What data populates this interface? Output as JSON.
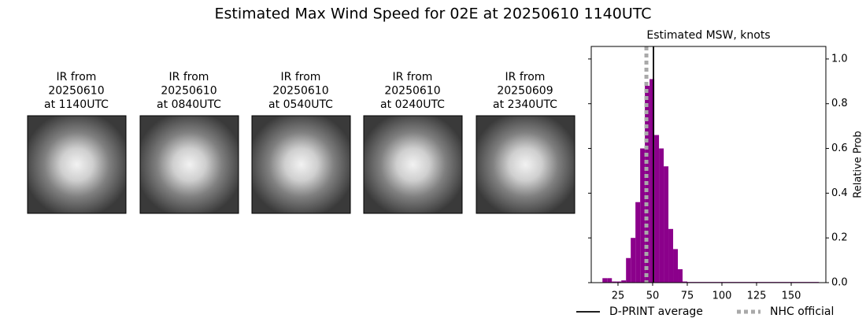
{
  "title": "Estimated Max Wind Speed for 02E at 20250610 1140UTC",
  "panels": [
    {
      "lines": [
        "IR from",
        "20250610",
        "at 1140UTC"
      ]
    },
    {
      "lines": [
        "IR from",
        "20250610",
        "at 0840UTC"
      ]
    },
    {
      "lines": [
        "IR from",
        "20250610",
        "at 0540UTC"
      ]
    },
    {
      "lines": [
        "IR from",
        "20250610",
        "at 0240UTC"
      ]
    },
    {
      "lines": [
        "IR from",
        "20250609",
        "at 2340UTC"
      ]
    }
  ],
  "chart_data": {
    "type": "histogram",
    "title": "Estimated MSW, knots",
    "y_label": "Relative Prob",
    "bins": [
      13.8,
      17.2,
      20.6,
      24,
      27.4,
      30.8,
      34.2,
      37.6,
      41,
      44.4,
      47.8,
      51.2,
      54.6,
      58,
      61.4,
      64.8,
      68.2,
      71.6,
      75,
      170
    ],
    "values": [
      0.02,
      0.02,
      0.005,
      0.005,
      0.01,
      0.11,
      0.2,
      0.36,
      0.6,
      0.88,
      0.91,
      0.66,
      0.6,
      0.52,
      0.24,
      0.15,
      0.06,
      0.005,
      0.003
    ],
    "color": "#8b008b",
    "xlim": [
      5.7,
      175
    ],
    "xticks": [
      25,
      50,
      75,
      100,
      125,
      150
    ],
    "ylim": [
      0,
      1.056
    ],
    "yticks": [
      {
        "value": 0,
        "label": "0.0"
      },
      0.2,
      0.4,
      0.6,
      0.8,
      {
        "value": 1,
        "label": "1.0"
      }
    ],
    "y_axis_side": "right",
    "lines": [
      {
        "name": "D-PRINT average",
        "value": 50.6,
        "color": "#000000",
        "style": "solid"
      },
      {
        "name": "NHC official",
        "value": 45.5,
        "color": "#a9a9a9",
        "style": "dotted"
      }
    ],
    "legend": "bottom"
  }
}
